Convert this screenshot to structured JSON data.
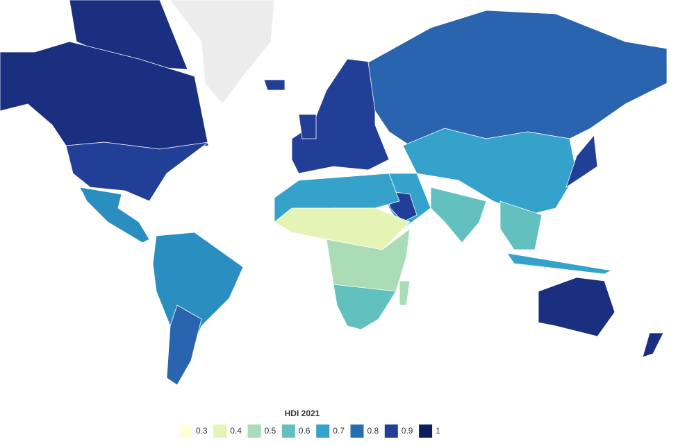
{
  "legend": {
    "title": "HDI 2021",
    "items": [
      {
        "value": 0.3,
        "color": "#ffffd9"
      },
      {
        "value": 0.4,
        "color": "#e4f4b4"
      },
      {
        "value": 0.5,
        "color": "#aadcb6"
      },
      {
        "value": 0.6,
        "color": "#62c1bf"
      },
      {
        "value": 0.7,
        "color": "#34a2cb"
      },
      {
        "value": 0.8,
        "color": "#2570b5"
      },
      {
        "value": 0.9,
        "color": "#223f97"
      },
      {
        "value": 1,
        "color": "#0b1e5a"
      }
    ]
  }
}
